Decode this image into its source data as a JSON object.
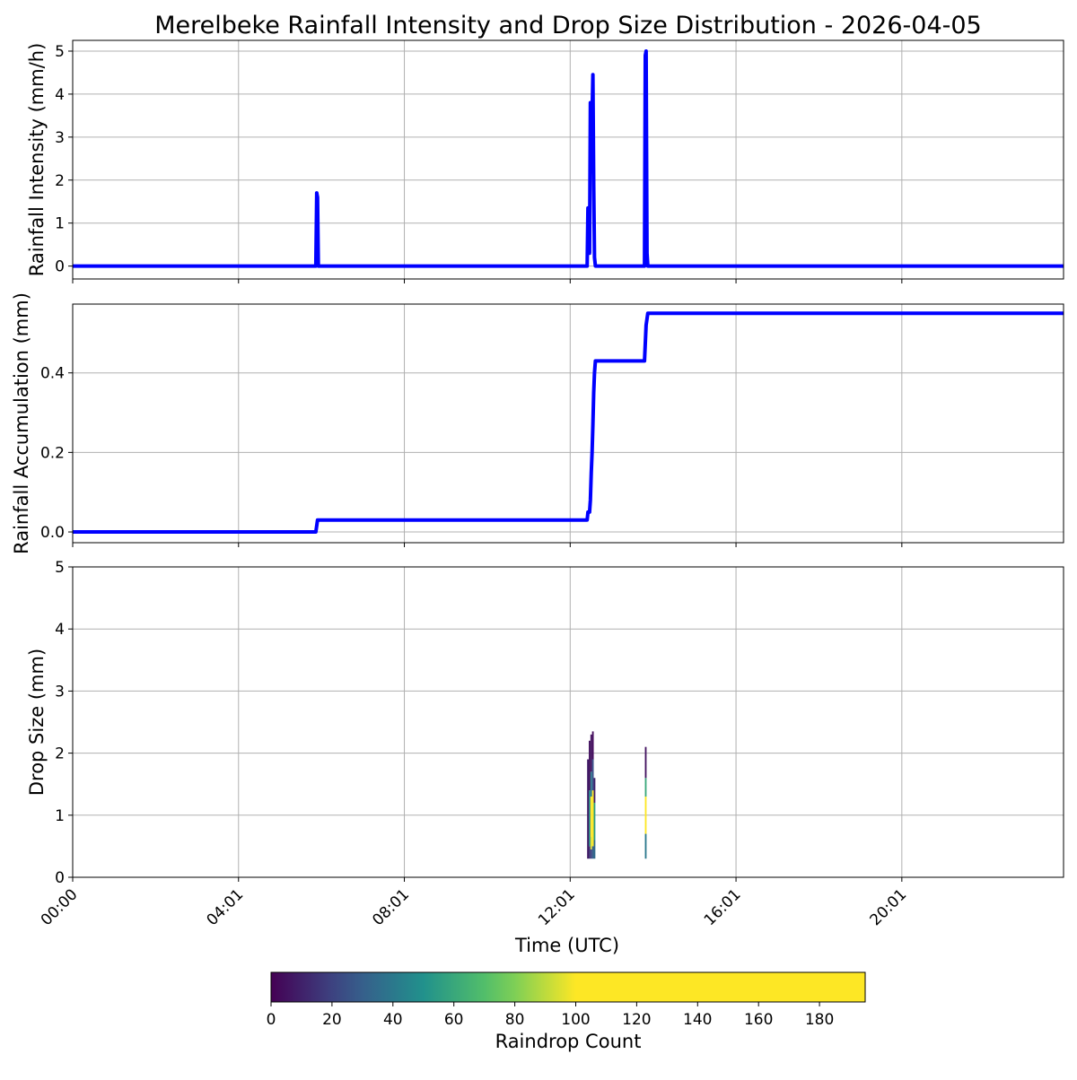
{
  "chart_data": [
    {
      "type": "line",
      "title": "Merelbeke Rainfall Intensity and Drop Size Distribution - 2026-04-05",
      "ylabel": "Rainfall Intensity (mm/h)",
      "xlim_hours": [
        0,
        24
      ],
      "ylim": [
        -0.3,
        5.25
      ],
      "yticks": [
        0,
        1,
        2,
        3,
        4,
        5
      ],
      "grid": true,
      "line_color": "#0000ff",
      "series": [
        {
          "x_hours": [
            0,
            5.89,
            5.91,
            5.93,
            5.95,
            12.46,
            12.48,
            12.5,
            12.52,
            12.54,
            12.56,
            12.58,
            12.6,
            12.62,
            12.64,
            12.66,
            12.68,
            12.7,
            13.85,
            13.87,
            13.89,
            13.91,
            13.93,
            24
          ],
          "y": [
            0,
            0,
            1.7,
            1.6,
            0,
            0,
            1.35,
            1.3,
            0.3,
            3.8,
            2.2,
            3.5,
            4.45,
            1.9,
            0.2,
            0,
            0,
            0,
            0,
            4.9,
            5.0,
            0.3,
            0,
            0
          ]
        }
      ]
    },
    {
      "type": "line",
      "ylabel": "Rainfall Accumulation (mm)",
      "xlim_hours": [
        0,
        24
      ],
      "ylim": [
        -0.027,
        0.573
      ],
      "yticks": [
        0.0,
        0.2,
        0.4
      ],
      "ytick_labels": [
        "0.0",
        "0.2",
        "0.4"
      ],
      "grid": true,
      "line_color": "#0000ff",
      "series": [
        {
          "x_hours": [
            0,
            5.89,
            5.93,
            12.46,
            12.48,
            12.52,
            12.54,
            12.56,
            12.58,
            12.6,
            12.62,
            12.64,
            12.66,
            12.7,
            13.85,
            13.89,
            13.93,
            24
          ],
          "y": [
            0,
            0,
            0.03,
            0.03,
            0.05,
            0.05,
            0.08,
            0.15,
            0.2,
            0.27,
            0.35,
            0.4,
            0.43,
            0.43,
            0.43,
            0.52,
            0.55,
            0.55
          ]
        }
      ]
    },
    {
      "type": "heatmap",
      "ylabel": "Drop Size (mm)",
      "xlabel": "Time (UTC)",
      "xlim_hours": [
        0,
        24
      ],
      "ylim": [
        0,
        5
      ],
      "yticks": [
        0,
        1,
        2,
        3,
        4,
        5
      ],
      "xticks_hours": [
        0,
        4.0167,
        8.0333,
        12.05,
        16.0667,
        20.0833
      ],
      "xtick_labels": [
        "00:00",
        "04:01",
        "08:01",
        "12:01",
        "16:01",
        "20:01"
      ],
      "grid": true,
      "cells": [
        {
          "x0": 12.46,
          "x1": 12.5,
          "y0": 0.3,
          "y1": 1.9,
          "count": 8
        },
        {
          "x0": 12.5,
          "x1": 12.54,
          "y0": 0.3,
          "y1": 0.5,
          "count": 15
        },
        {
          "x0": 12.5,
          "x1": 12.54,
          "y0": 0.5,
          "y1": 1.4,
          "count": 45
        },
        {
          "x0": 12.5,
          "x1": 12.54,
          "y0": 1.4,
          "y1": 2.2,
          "count": 5
        },
        {
          "x0": 12.54,
          "x1": 12.58,
          "y0": 0.3,
          "y1": 0.45,
          "count": 20
        },
        {
          "x0": 12.54,
          "x1": 12.58,
          "y0": 0.45,
          "y1": 0.65,
          "count": 95
        },
        {
          "x0": 12.54,
          "x1": 12.58,
          "y0": 0.65,
          "y1": 1.3,
          "count": 180
        },
        {
          "x0": 12.54,
          "x1": 12.58,
          "y0": 1.3,
          "y1": 1.7,
          "count": 40
        },
        {
          "x0": 12.54,
          "x1": 12.58,
          "y0": 1.7,
          "y1": 2.3,
          "count": 5
        },
        {
          "x0": 12.58,
          "x1": 12.62,
          "y0": 0.3,
          "y1": 0.5,
          "count": 30
        },
        {
          "x0": 12.58,
          "x1": 12.62,
          "y0": 0.5,
          "y1": 1.4,
          "count": 120
        },
        {
          "x0": 12.58,
          "x1": 12.62,
          "y0": 1.4,
          "y1": 1.9,
          "count": 25
        },
        {
          "x0": 12.58,
          "x1": 12.62,
          "y0": 1.9,
          "y1": 2.35,
          "count": 3
        },
        {
          "x0": 12.62,
          "x1": 12.66,
          "y0": 0.3,
          "y1": 0.6,
          "count": 35
        },
        {
          "x0": 12.62,
          "x1": 12.66,
          "y0": 0.6,
          "y1": 1.2,
          "count": 55
        },
        {
          "x0": 12.62,
          "x1": 12.66,
          "y0": 1.2,
          "y1": 1.6,
          "count": 10
        },
        {
          "x0": 13.86,
          "x1": 13.9,
          "y0": 0.3,
          "y1": 0.7,
          "count": 40
        },
        {
          "x0": 13.86,
          "x1": 13.9,
          "y0": 0.7,
          "y1": 1.3,
          "count": 110
        },
        {
          "x0": 13.86,
          "x1": 13.9,
          "y0": 1.3,
          "y1": 1.6,
          "count": 60
        },
        {
          "x0": 13.86,
          "x1": 13.9,
          "y0": 1.6,
          "y1": 2.1,
          "count": 5
        }
      ],
      "colorbar": {
        "label": "Raindrop Count",
        "range": [
          0,
          195
        ],
        "ticks": [
          0,
          20,
          40,
          60,
          80,
          100,
          120,
          140,
          160,
          180
        ],
        "colormap": "viridis",
        "saturates_at": 100
      }
    }
  ]
}
